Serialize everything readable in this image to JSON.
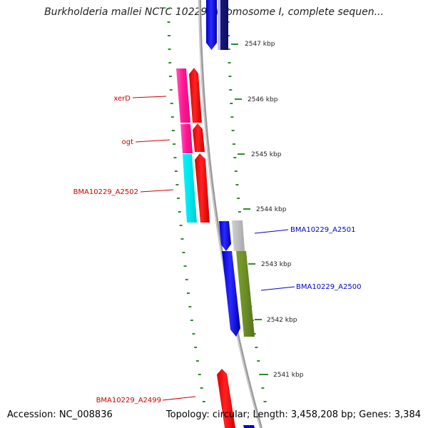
{
  "title": "Burkholderia mallei NCTC 10229 chromosome I, complete sequen...",
  "footer": {
    "accession": "Accession: NC_008836",
    "topology": "Topology: circular; Length: 3,458,208 bp; Genes: 3,384"
  },
  "colors": {
    "backbone": "#9a9a9a",
    "tick": "#2e8b2e",
    "forward_label": "#0000cc",
    "reverse_label": "#cc0000"
  },
  "scale_ticks": [
    {
      "kbp": 2547,
      "label": "2547 kbp"
    },
    {
      "kbp": 2546,
      "label": "2546 kbp"
    },
    {
      "kbp": 2545,
      "label": "2545 kbp"
    },
    {
      "kbp": 2544,
      "label": "2544 kbp"
    },
    {
      "kbp": 2543,
      "label": "2543 kbp"
    },
    {
      "kbp": 2542,
      "label": "2542 kbp"
    },
    {
      "kbp": 2541,
      "label": "2541 kbp"
    }
  ],
  "genes": [
    {
      "name": "xerD",
      "strand": "reverse",
      "color": "#ff1493"
    },
    {
      "name": "ogt",
      "strand": "reverse",
      "color": "#ff1493"
    },
    {
      "name": "BMA10229_A2502",
      "strand": "reverse",
      "color": "#00e5ee"
    },
    {
      "name": "BMA10229_A2501",
      "strand": "forward",
      "color": "#bdbdbd"
    },
    {
      "name": "BMA10229_A2500",
      "strand": "forward",
      "color": "#6b8e23"
    },
    {
      "name": "BMA10229_A2499",
      "strand": "reverse",
      "color": "#ff0000"
    }
  ]
}
